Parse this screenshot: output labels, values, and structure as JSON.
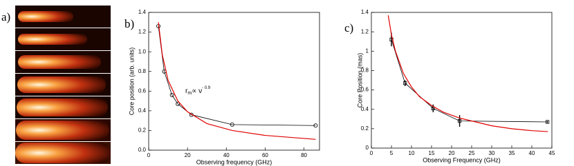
{
  "images": {
    "label": "a)"
  },
  "chart_data": [
    {
      "type": "line",
      "panel_label": "b)",
      "xlabel": "Observing frequency (GHz)",
      "ylabel": "Core position (arb. units)",
      "xlim": [
        0,
        88
      ],
      "ylim": [
        0,
        1.4
      ],
      "xticks": [
        0,
        20,
        40,
        60,
        80
      ],
      "yticks": [
        {
          "value": 0,
          "label": "0.0"
        },
        0.2,
        0.4,
        0.6,
        0.8,
        {
          "value": 1,
          "label": "1.0"
        },
        1.2,
        1.4
      ],
      "annotation": {
        "text": "r",
        "subscript": "m",
        "relation": "∝ ν",
        "exponent": "- 0.9"
      },
      "series": [
        {
          "color": "#000000",
          "marker": "circle",
          "x": [
            5,
            8,
            12,
            15,
            22,
            43,
            86
          ],
          "values": [
            1.26,
            0.8,
            0.56,
            0.47,
            0.36,
            0.26,
            0.25
          ]
        },
        {
          "color": "#e00000",
          "x": [
            5,
            7,
            10,
            15,
            20,
            30,
            43,
            60,
            86
          ],
          "values": [
            1.3,
            0.97,
            0.71,
            0.5,
            0.39,
            0.27,
            0.2,
            0.15,
            0.11
          ]
        }
      ]
    },
    {
      "type": "line",
      "panel_label": "c)",
      "xlabel": "Observing Frequency (GHz)",
      "ylabel": "Core Position (mas)",
      "xlim": [
        0,
        45
      ],
      "ylim": [
        0,
        1.4
      ],
      "xticks": [
        0,
        5,
        10,
        15,
        20,
        25,
        30,
        35,
        40,
        45
      ],
      "yticks": [
        0,
        0.2,
        0.4,
        0.6,
        0.8,
        1,
        1.2,
        1.4
      ],
      "series": [
        {
          "color": "#000000",
          "marker": "square",
          "x": [
            5,
            8.4,
            15.4,
            22,
            43.9
          ],
          "values": [
            1.12,
            0.67,
            0.41,
            0.28,
            0.27
          ],
          "errors": [
            0.07,
            0.03,
            0.04,
            0.06,
            0.01
          ]
        },
        {
          "color": "#e00000",
          "x": [
            4.2,
            5,
            6,
            8,
            10,
            12,
            15,
            18,
            22,
            26,
            30,
            35,
            40,
            44
          ],
          "values": [
            1.37,
            1.17,
            1.0,
            0.77,
            0.63,
            0.53,
            0.44,
            0.37,
            0.31,
            0.27,
            0.23,
            0.2,
            0.18,
            0.17
          ]
        }
      ]
    }
  ]
}
